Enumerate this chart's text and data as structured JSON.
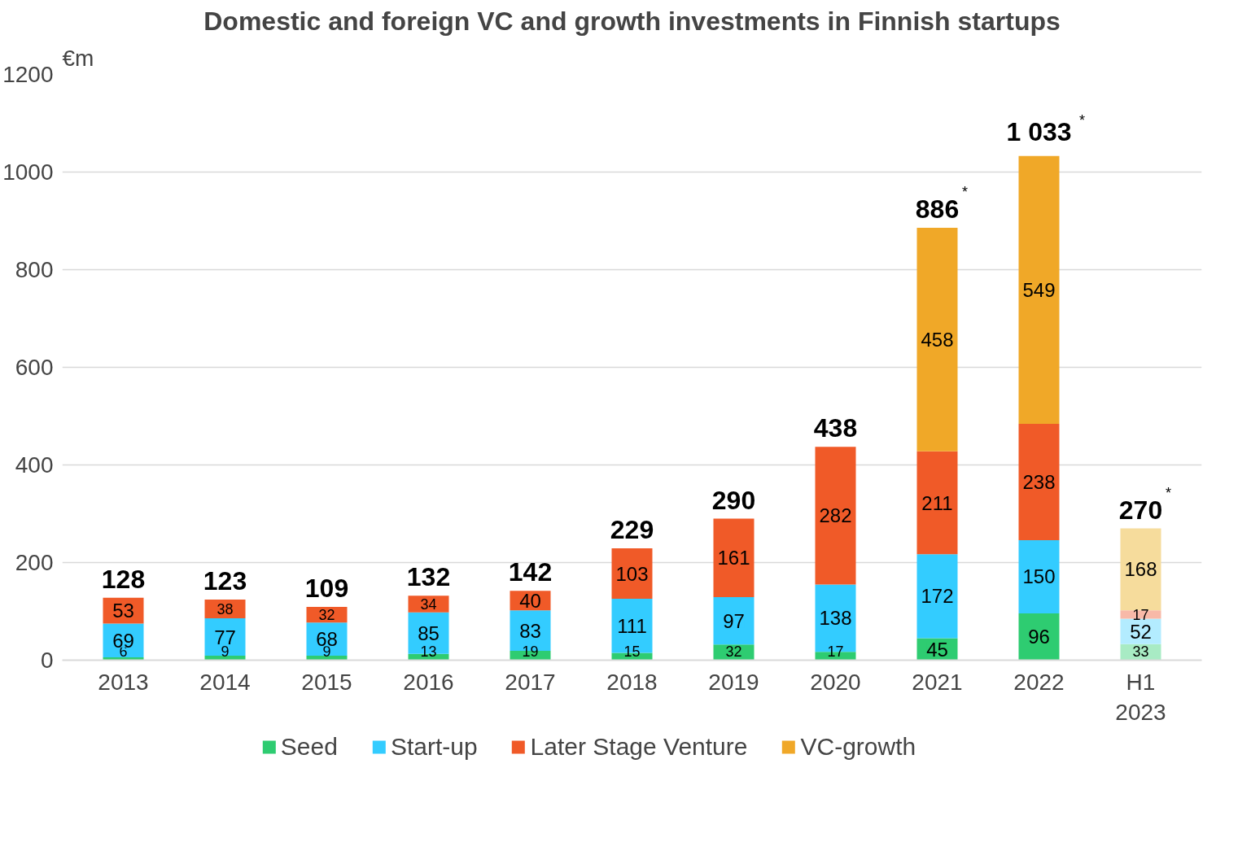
{
  "chart_data": {
    "type": "bar",
    "title": "Domestic and foreign VC and growth investments in Finnish startups",
    "ylabel": "€m",
    "categories": [
      "2013",
      "2014",
      "2015",
      "2016",
      "2017",
      "2018",
      "2019",
      "2020",
      "2021",
      "2022",
      "H1\n2023"
    ],
    "stacked": true,
    "data_labels": true,
    "grid": "y",
    "legend": "bottom",
    "ylim": [
      0,
      1200
    ],
    "yticks": [
      0,
      200,
      400,
      600,
      800,
      1000,
      1200
    ],
    "series": [
      {
        "name": "Seed",
        "color": "#2ecc71",
        "colors": [
          "#2ecc71",
          "#2ecc71",
          "#2ecc71",
          "#2ecc71",
          "#2ecc71",
          "#2ecc71",
          "#2ecc71",
          "#2ecc71",
          "#2ecc71",
          "#2ecc71",
          "#a8ebc4"
        ],
        "values": [
          6,
          9,
          9,
          13,
          19,
          15,
          32,
          17,
          45,
          96,
          33
        ]
      },
      {
        "name": "Start-up",
        "color": "#33ccff",
        "colors": [
          "#33ccff",
          "#33ccff",
          "#33ccff",
          "#33ccff",
          "#33ccff",
          "#33ccff",
          "#33ccff",
          "#33ccff",
          "#33ccff",
          "#33ccff",
          "#b3ecff"
        ],
        "values": [
          69,
          77,
          68,
          85,
          83,
          111,
          97,
          138,
          172,
          150,
          52
        ]
      },
      {
        "name": "Later Stage Venture",
        "color": "#f05a28",
        "colors": [
          "#f05a28",
          "#f05a28",
          "#f05a28",
          "#f05a28",
          "#f05a28",
          "#f05a28",
          "#f05a28",
          "#f05a28",
          "#f05a28",
          "#f05a28",
          "#f8b9a8"
        ],
        "values": [
          53,
          38,
          32,
          34,
          40,
          103,
          161,
          282,
          211,
          238,
          17
        ]
      },
      {
        "name": "VC-growth",
        "color": "#f0a828",
        "colors": [
          "#f0a828",
          "#f0a828",
          "#f0a828",
          "#f0a828",
          "#f0a828",
          "#f0a828",
          "#f0a828",
          "#f0a828",
          "#f0a828",
          "#f0a828",
          "#f6dc9c"
        ],
        "values": [
          null,
          null,
          null,
          null,
          null,
          null,
          null,
          null,
          458,
          549,
          168
        ]
      }
    ],
    "totals": [
      "128",
      "123",
      "109",
      "132",
      "142",
      "229",
      "290",
      "438",
      "886$^{*}$",
      "1 033$^{*}$",
      "270$^{*}$"
    ]
  }
}
